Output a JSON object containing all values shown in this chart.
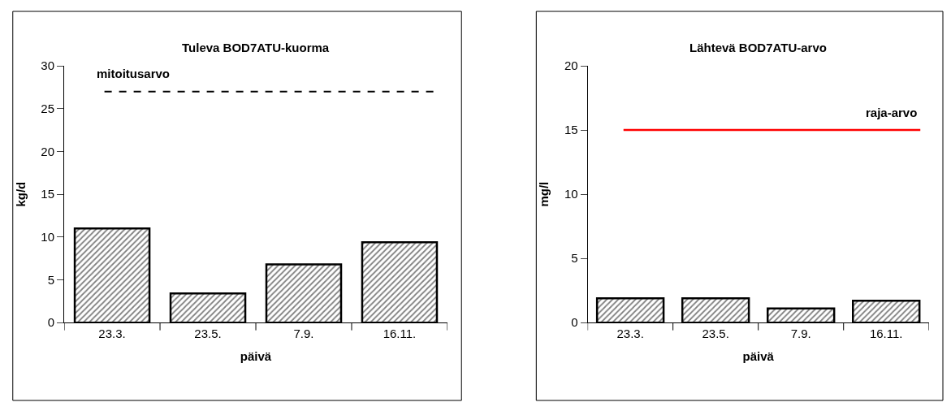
{
  "chart_data": [
    {
      "type": "bar",
      "title": "Tuleva BOD7ATU-kuorma",
      "xlabel": "päivä",
      "ylabel": "kg/d",
      "categories": [
        "23.3.",
        "23.5.",
        "7.9.",
        "16.11."
      ],
      "values": [
        11.0,
        3.4,
        6.8,
        9.4
      ],
      "color": "#000000",
      "ylim": [
        0,
        30
      ],
      "yticks": [
        0,
        5,
        10,
        15,
        20,
        25,
        30
      ],
      "ref_lines": [
        {
          "axis": "y",
          "value": 27,
          "label": "mitoitusarvo",
          "color": "#000000",
          "line_style": "dashed"
        }
      ]
    },
    {
      "type": "bar",
      "title": "Lähtevä BOD7ATU-arvo",
      "xlabel": "päivä",
      "ylabel": "mg/l",
      "categories": [
        "23.3.",
        "23.5.",
        "7.9.",
        "16.11."
      ],
      "values": [
        1.9,
        1.9,
        1.1,
        1.7
      ],
      "color": "#000000",
      "ylim": [
        0,
        20
      ],
      "yticks": [
        0,
        5,
        10,
        15,
        20
      ],
      "ref_lines": [
        {
          "axis": "y",
          "value": 15,
          "label": "raja-arvo",
          "color": "#ff0000",
          "line_style": "solid"
        }
      ]
    }
  ]
}
